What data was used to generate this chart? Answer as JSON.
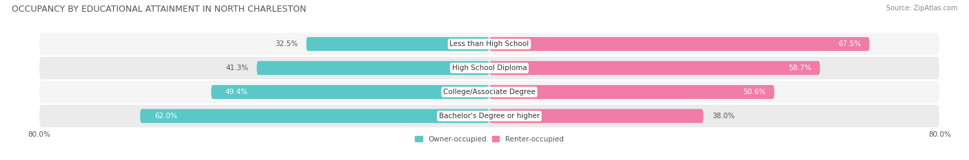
{
  "title": "OCCUPANCY BY EDUCATIONAL ATTAINMENT IN NORTH CHARLESTON",
  "source": "Source: ZipAtlas.com",
  "categories": [
    "Less than High School",
    "High School Diploma",
    "College/Associate Degree",
    "Bachelor's Degree or higher"
  ],
  "owner_pct": [
    32.5,
    41.3,
    49.4,
    62.0
  ],
  "renter_pct": [
    67.5,
    58.7,
    50.6,
    38.0
  ],
  "owner_color": "#5BC8C8",
  "renter_color": "#F07CA8",
  "row_bg_color": "#EBEBEB",
  "row_bg_color2": "#F5F5F5",
  "xlim_left": -80.0,
  "xlim_right": 80.0,
  "figsize": [
    14.06,
    2.33
  ],
  "dpi": 100,
  "title_fontsize": 9,
  "label_fontsize": 7.5,
  "tick_fontsize": 7.5,
  "legend_fontsize": 7.5,
  "bar_height": 0.58,
  "owner_label_threshold": 45,
  "renter_label_threshold": 45
}
